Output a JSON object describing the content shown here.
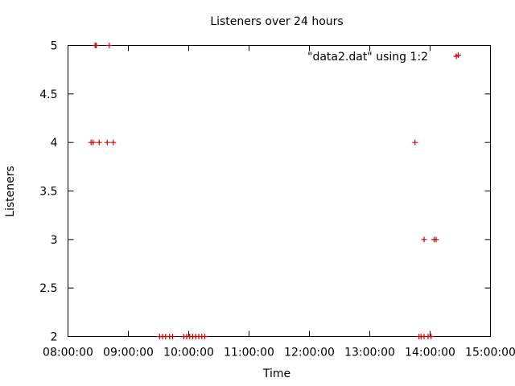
{
  "chart_data": {
    "type": "scatter",
    "title": "Listeners over 24 hours",
    "xlabel": "Time",
    "ylabel": "Listeners",
    "xlim": [
      "08:00:00",
      "15:00:00"
    ],
    "ylim": [
      2,
      5
    ],
    "x_ticks": [
      "08:00:00",
      "09:00:00",
      "10:00:00",
      "11:00:00",
      "12:00:00",
      "13:00:00",
      "14:00:00",
      "15:00:00"
    ],
    "y_ticks": [
      "2",
      "2.5",
      "3",
      "3.5",
      "4",
      "4.5",
      "5"
    ],
    "grid": false,
    "legend_position": "top-right",
    "marker_color": "#cc0000",
    "series": [
      {
        "name": "\"data2.dat\" using 1:2",
        "points": [
          {
            "x": "08:27:00",
            "y": 5
          },
          {
            "x": "08:28:00",
            "y": 5
          },
          {
            "x": "08:41:00",
            "y": 5
          },
          {
            "x": "08:23:00",
            "y": 4
          },
          {
            "x": "08:25:00",
            "y": 4
          },
          {
            "x": "08:31:00",
            "y": 4
          },
          {
            "x": "08:39:00",
            "y": 4
          },
          {
            "x": "08:45:00",
            "y": 4
          },
          {
            "x": "09:31:00",
            "y": 2
          },
          {
            "x": "09:34:00",
            "y": 2
          },
          {
            "x": "09:37:00",
            "y": 2
          },
          {
            "x": "09:41:00",
            "y": 2
          },
          {
            "x": "09:44:00",
            "y": 2
          },
          {
            "x": "09:55:00",
            "y": 2
          },
          {
            "x": "09:58:00",
            "y": 2
          },
          {
            "x": "10:01:00",
            "y": 2
          },
          {
            "x": "10:04:00",
            "y": 2
          },
          {
            "x": "10:07:00",
            "y": 2
          },
          {
            "x": "10:10:00",
            "y": 2
          },
          {
            "x": "10:13:00",
            "y": 2
          },
          {
            "x": "10:16:00",
            "y": 2
          },
          {
            "x": "13:45:00",
            "y": 4
          },
          {
            "x": "13:49:00",
            "y": 2
          },
          {
            "x": "13:51:00",
            "y": 2
          },
          {
            "x": "13:54:00",
            "y": 2
          },
          {
            "x": "13:58:00",
            "y": 2
          },
          {
            "x": "14:01:00",
            "y": 2
          },
          {
            "x": "13:54:00",
            "y": 3
          },
          {
            "x": "14:04:00",
            "y": 3
          },
          {
            "x": "14:06:00",
            "y": 3
          },
          {
            "x": "14:28:00",
            "y": 4.9
          }
        ]
      }
    ]
  }
}
